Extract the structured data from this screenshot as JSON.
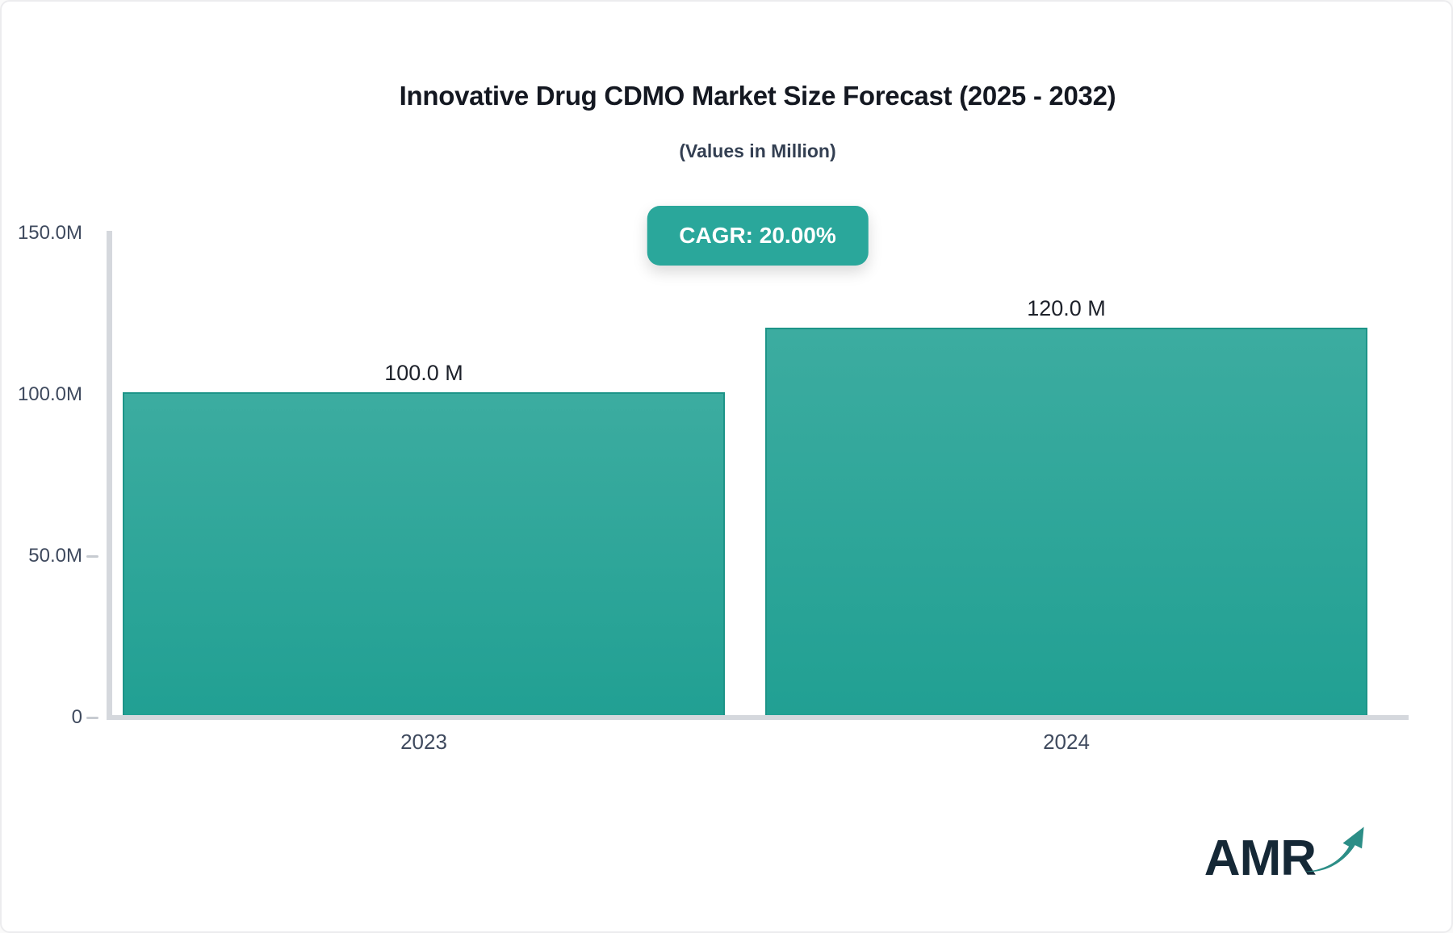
{
  "header": {
    "title": "Innovative Drug CDMO Market Size Forecast (2025 - 2032)",
    "subtitle": "(Values in Million)",
    "cagr_label": "CAGR: 20.00%"
  },
  "chart_data": {
    "type": "bar",
    "title": "Innovative Drug CDMO Market Size Forecast (2025 - 2032)",
    "subtitle": "(Values in Million)",
    "annotation": "CAGR: 20.00%",
    "unit": "Million",
    "categories": [
      "2023",
      "2024"
    ],
    "values": [
      100.0,
      120.0
    ],
    "value_labels": [
      "100.0 M",
      "120.0 M"
    ],
    "ylabel": "",
    "xlabel": "",
    "ylim": [
      0,
      150
    ],
    "yticks": [
      {
        "value": 0,
        "label": "0",
        "dash": true
      },
      {
        "value": 50,
        "label": "50.0M",
        "dash": true
      },
      {
        "value": 100,
        "label": "100.0M",
        "dash": false
      },
      {
        "value": 150,
        "label": "150.0M",
        "dash": false
      }
    ],
    "grid": false,
    "legend": false
  },
  "colors": {
    "badge_bg": "#2aa79b",
    "badge_text": "#ffffff",
    "bar_gradient_top": "#3caca0",
    "bar_gradient_bottom": "#21a093",
    "bar_border": "#1d9488",
    "axis_line": "#d5d8dd",
    "tick_dash": "#c7cbd1",
    "tick_label": "#3f4a5e",
    "value_label": "#1d212a",
    "title": "#141821",
    "subtitle": "#333f52",
    "logo_text": "#152836",
    "logo_arrow": "#2c8e87"
  },
  "logo": {
    "text": "AMR",
    "arrow_icon": "trend-up-arrow"
  }
}
